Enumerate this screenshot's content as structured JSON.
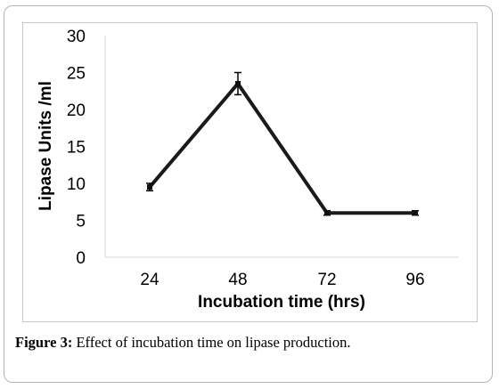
{
  "chart_data": {
    "type": "line",
    "categories": [
      "24",
      "48",
      "72",
      "96"
    ],
    "series": [
      {
        "values": [
          9.5,
          23.5,
          6,
          6
        ],
        "errors": [
          0.5,
          1.5,
          0.3,
          0.3
        ]
      }
    ],
    "yticks": [
      "0",
      "5",
      "10",
      "15",
      "20",
      "25",
      "30"
    ],
    "ylim": [
      0,
      30
    ],
    "xlabel": "Incubation time (hrs)",
    "ylabel": "Lipase Units /ml",
    "grid": false,
    "line_color": "#1a1a1a"
  },
  "caption": {
    "label": "Figure 3:",
    "text": " Effect of incubation time on lipase production."
  }
}
